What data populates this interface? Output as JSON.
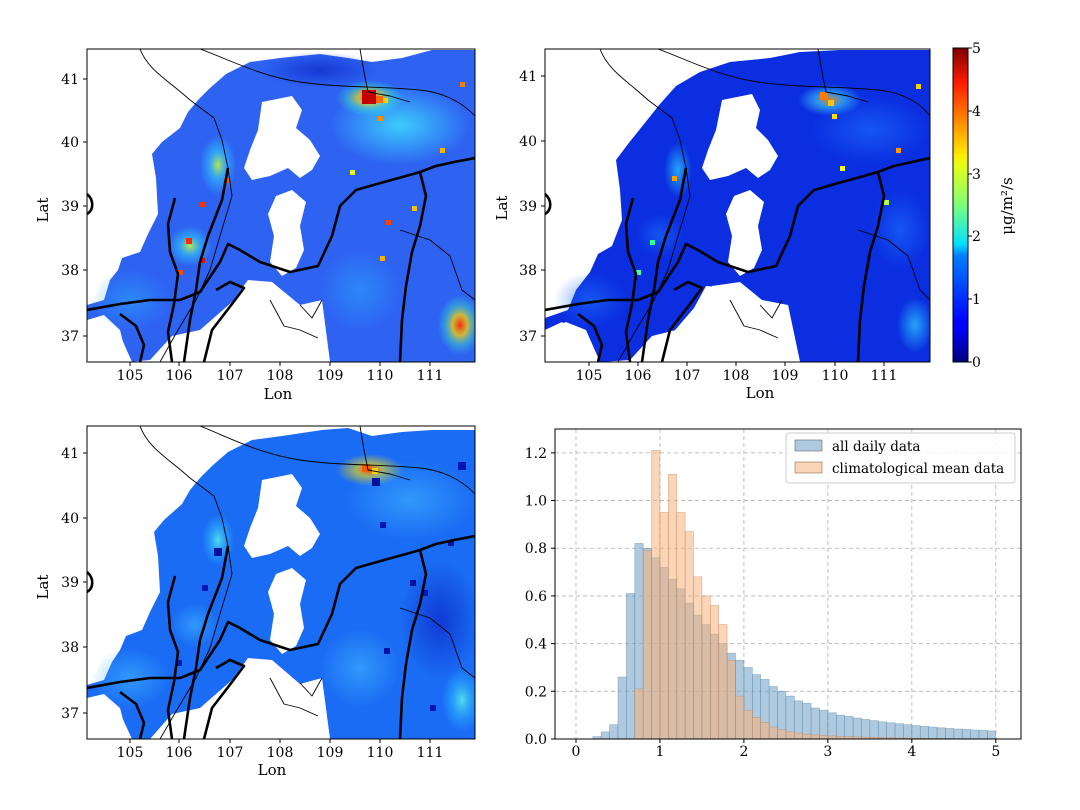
{
  "chart_data": [
    {
      "type": "heatmap",
      "panel": "map-top-left",
      "xlabel": "Lon",
      "ylabel": "Lat",
      "xlim": [
        104.1,
        112.0
      ],
      "ylim": [
        36.63,
        41.43
      ],
      "xticks": [
        "105",
        "106",
        "107",
        "108",
        "109",
        "110",
        "111"
      ],
      "yticks": [
        "37",
        "38",
        "39",
        "40",
        "41"
      ]
    },
    {
      "type": "heatmap",
      "panel": "map-top-right",
      "xlabel": "Lon",
      "ylabel": "Lat",
      "xlim": [
        104.1,
        112.0
      ],
      "ylim": [
        36.63,
        41.43
      ],
      "xticks": [
        "105",
        "106",
        "107",
        "108",
        "109",
        "110",
        "111"
      ],
      "yticks": [
        "37",
        "38",
        "39",
        "40",
        "41"
      ]
    },
    {
      "type": "heatmap",
      "panel": "map-bottom-left",
      "xlabel": "Lon",
      "ylabel": "Lat",
      "xlim": [
        104.1,
        112.0
      ],
      "ylim": [
        36.63,
        41.43
      ],
      "xticks": [
        "105",
        "106",
        "107",
        "108",
        "109",
        "110",
        "111"
      ],
      "yticks": [
        "37",
        "38",
        "39",
        "40",
        "41"
      ]
    },
    {
      "type": "colorbar",
      "label": "μg/m²/s",
      "range": [
        0,
        5
      ],
      "ticks": [
        "0",
        "1",
        "2",
        "3",
        "4",
        "5"
      ],
      "colormap": "jet"
    },
    {
      "type": "histogram",
      "xlim": [
        -0.25,
        5.3
      ],
      "ylim": [
        0,
        1.3
      ],
      "xticks": [
        "0",
        "1",
        "2",
        "3",
        "4",
        "5"
      ],
      "yticks": [
        "0.0",
        "0.2",
        "0.4",
        "0.6",
        "0.8",
        "1.0",
        "1.2"
      ],
      "grid": true,
      "legend_position": "upper right",
      "bin_start": 0.0,
      "bin_width": 0.1,
      "series": [
        {
          "name": "all daily data",
          "color": "#7aa6c8",
          "values": [
            0.0,
            0.0,
            0.01,
            0.03,
            0.06,
            0.26,
            0.61,
            0.82,
            0.8,
            0.76,
            0.72,
            0.67,
            0.63,
            0.57,
            0.52,
            0.48,
            0.44,
            0.4,
            0.36,
            0.33,
            0.3,
            0.27,
            0.25,
            0.22,
            0.2,
            0.18,
            0.16,
            0.15,
            0.13,
            0.12,
            0.11,
            0.1,
            0.095,
            0.088,
            0.082,
            0.077,
            0.072,
            0.068,
            0.064,
            0.06,
            0.056,
            0.053,
            0.05,
            0.047,
            0.044,
            0.042,
            0.04,
            0.038,
            0.036,
            0.034
          ]
        },
        {
          "name": "climatological mean data",
          "color": "#f7b37b",
          "values": [
            0,
            0,
            0,
            0,
            0,
            0,
            0,
            0.21,
            0.79,
            1.21,
            0.95,
            1.11,
            0.95,
            0.87,
            0.68,
            0.6,
            0.56,
            0.48,
            0.33,
            0.18,
            0.12,
            0.09,
            0.07,
            0.05,
            0.04,
            0.03,
            0.025,
            0.02,
            0.017,
            0.015,
            0.013,
            0.011,
            0.01,
            0.009,
            0.008,
            0.007,
            0.006,
            0.005,
            0.004,
            0.004,
            0.003,
            0.003,
            0.002,
            0.002,
            0.002,
            0.001,
            0.001,
            0.001,
            0.001,
            0.0
          ]
        }
      ]
    }
  ]
}
